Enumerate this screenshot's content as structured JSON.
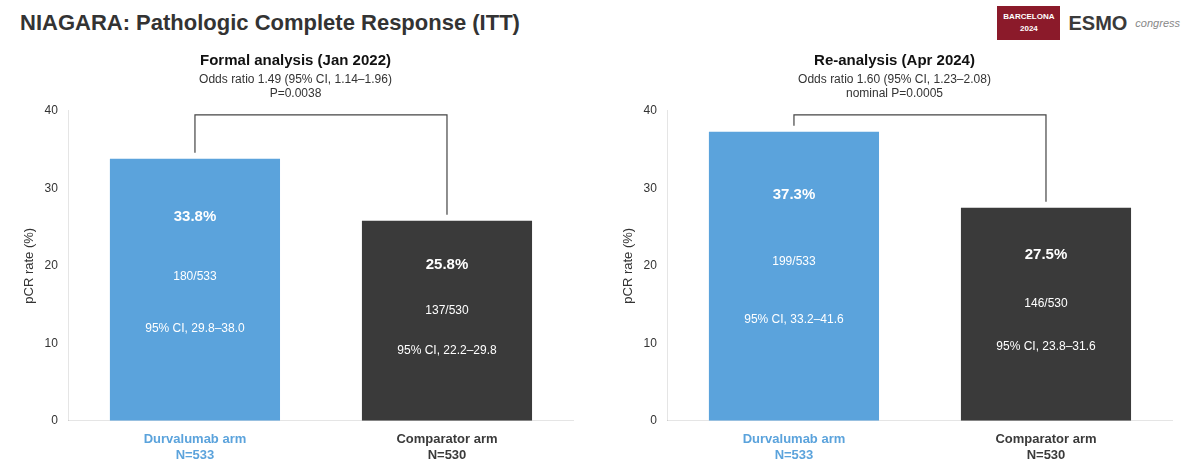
{
  "title": "NIAGARA: Pathologic Complete Response (ITT)",
  "annotations": [
    "BARCELONA",
    "2024",
    "ESMO",
    "congress"
  ],
  "chart_data": [
    {
      "type": "bar",
      "title": "Formal analysis (Jan 2022)",
      "subtitle": [
        "Odds ratio 1.49 (95% CI, 1.14–1.96)",
        "P=0.0038"
      ],
      "categories": [
        [
          "Durvalumab arm",
          "N=533"
        ],
        [
          "Comparator arm",
          "N=530"
        ]
      ],
      "values": [
        33.8,
        25.8
      ],
      "value_labels": [
        "33.8%",
        "25.8%"
      ],
      "bar_texts": [
        [
          "180/533",
          "95% CI, 29.8–38.0"
        ],
        [
          "137/530",
          "95% CI, 22.2–29.8"
        ]
      ],
      "colors": [
        "#5BA3DC",
        "#3A3A3A"
      ],
      "ylabel": "pCR rate (%)",
      "ylim": [
        0,
        40
      ],
      "yticks": [
        0,
        10,
        20,
        30,
        40
      ],
      "grid": false,
      "data_labels": true
    },
    {
      "type": "bar",
      "title": "Re-analysis (Apr 2024)",
      "subtitle": [
        "Odds ratio 1.60 (95% CI, 1.23–2.08)",
        "nominal P=0.0005"
      ],
      "categories": [
        [
          "Durvalumab arm",
          "N=533"
        ],
        [
          "Comparator arm",
          "N=530"
        ]
      ],
      "values": [
        37.3,
        27.5
      ],
      "value_labels": [
        "37.3%",
        "27.5%"
      ],
      "bar_texts": [
        [
          "199/533",
          "95% CI, 33.2–41.6"
        ],
        [
          "146/530",
          "95% CI, 23.8–31.6"
        ]
      ],
      "colors": [
        "#5BA3DC",
        "#3A3A3A"
      ],
      "ylabel": "pCR rate (%)",
      "ylim": [
        0,
        40
      ],
      "yticks": [
        0,
        10,
        20,
        30,
        40
      ],
      "grid": false,
      "data_labels": true
    }
  ]
}
